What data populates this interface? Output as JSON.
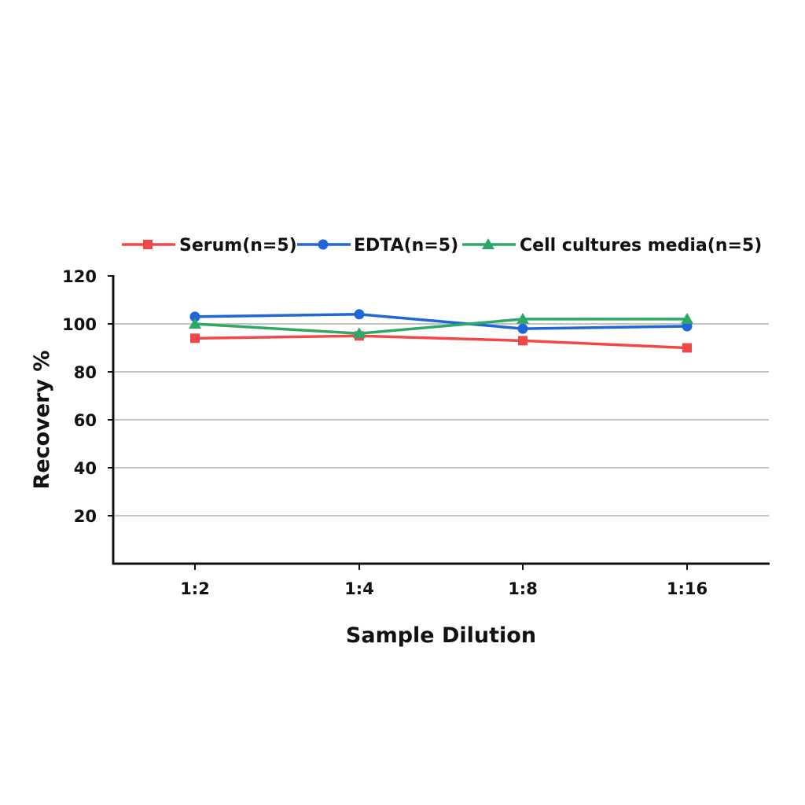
{
  "chart_data": {
    "type": "line",
    "title": "",
    "xlabel": "Sample Dilution",
    "ylabel": "Recovery %",
    "categories": [
      "1:2",
      "1:4",
      "1:8",
      "1:16"
    ],
    "ylim": [
      0,
      120
    ],
    "yticks": [
      20,
      40,
      60,
      80,
      100,
      120
    ],
    "grid": true,
    "legend_position": "top",
    "series": [
      {
        "name": "Serum(n=5)",
        "color": "#f04848",
        "marker": "square",
        "values": [
          94,
          95,
          93,
          90
        ]
      },
      {
        "name": "EDTA(n=5)",
        "color": "#1f66d6",
        "marker": "circle",
        "values": [
          103,
          104,
          98,
          99
        ]
      },
      {
        "name": "Cell cultures media(n=5)",
        "color": "#2ea866",
        "marker": "triangle",
        "values": [
          100,
          96,
          102,
          102
        ]
      }
    ]
  }
}
